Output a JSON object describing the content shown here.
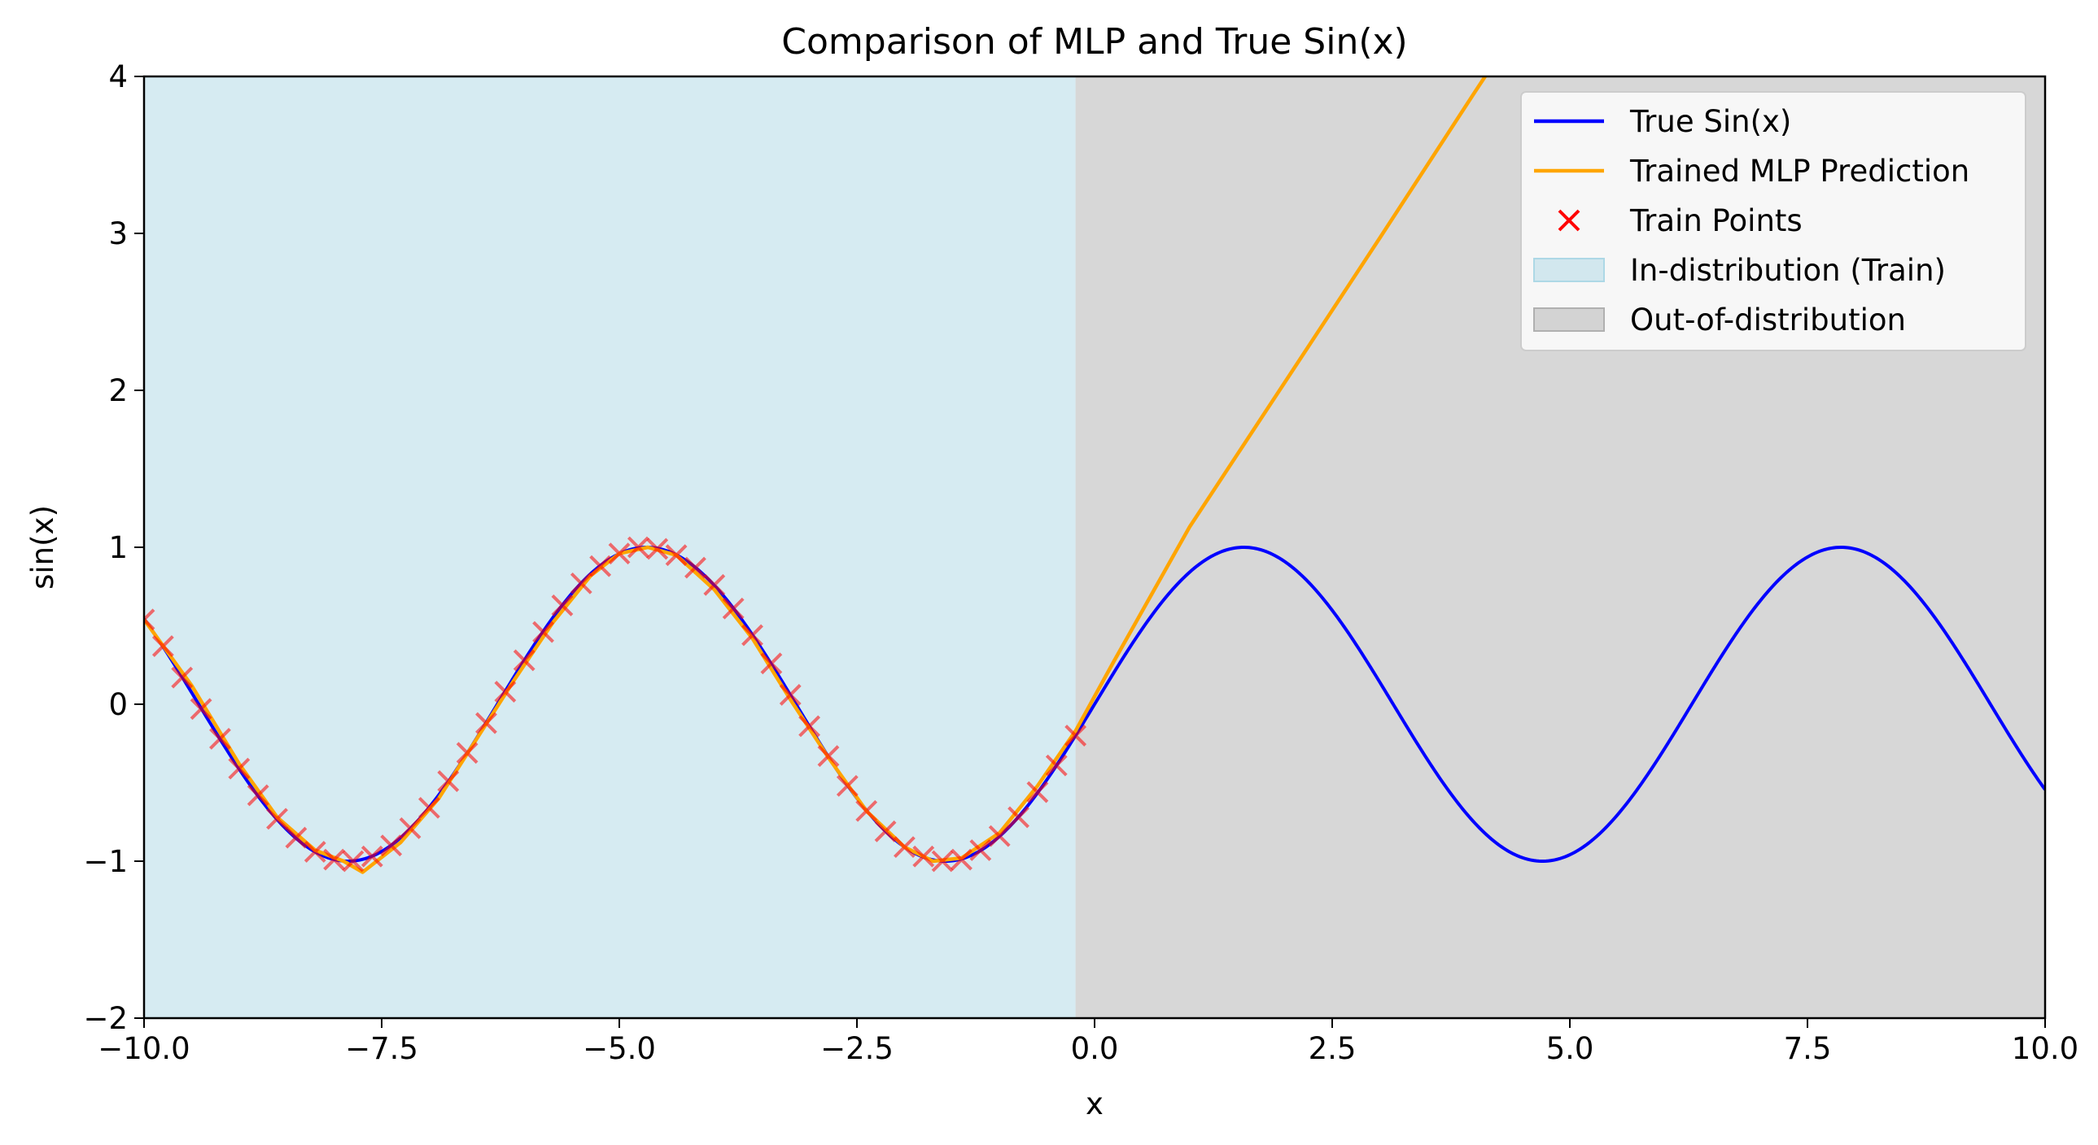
{
  "chart_data": {
    "type": "line",
    "title": "Comparison of MLP and True Sin(x)",
    "xlabel": "x",
    "ylabel": "sin(x)",
    "xlim": [
      -10.0,
      10.0
    ],
    "ylim": [
      -2,
      4
    ],
    "xticks": [
      "−10.0",
      "−7.5",
      "−5.0",
      "−2.5",
      "0.0",
      "2.5",
      "5.0",
      "7.5",
      "10.0"
    ],
    "xtick_values": [
      -10.0,
      -7.5,
      -5.0,
      -2.5,
      0.0,
      2.5,
      5.0,
      7.5,
      10.0
    ],
    "yticks": [
      "−2",
      "−1",
      "0",
      "1",
      "2",
      "3",
      "4"
    ],
    "ytick_values": [
      -2,
      -1,
      0,
      1,
      2,
      3,
      4
    ],
    "grid": false,
    "legend_position": "top-right",
    "regions": [
      {
        "name": "In-distribution (Train)",
        "x_start": -10.0,
        "x_end": -0.2,
        "color": "#add8e6"
      },
      {
        "name": "Out-of-distribution",
        "x_start": -0.2,
        "x_end": 10.0,
        "color": "#b0b0b0"
      }
    ],
    "series": [
      {
        "name": "True Sin(x)",
        "kind": "line",
        "color": "#0000ff",
        "function": "sin",
        "x_range": [
          -10.0,
          10.0
        ]
      },
      {
        "name": "Trained MLP Prediction",
        "kind": "line",
        "color": "#ffa500",
        "x": [
          -10.0,
          -9.5,
          -9.0,
          -8.6,
          -8.2,
          -7.9,
          -7.7,
          -7.3,
          -6.9,
          -6.5,
          -6.1,
          -5.7,
          -5.3,
          -5.0,
          -4.7,
          -4.4,
          -4.0,
          -3.6,
          -3.2,
          -2.8,
          -2.4,
          -2.0,
          -1.7,
          -1.4,
          -1.0,
          -0.6,
          -0.2,
          0.2,
          0.6,
          1.0,
          2.0,
          3.0,
          4.0,
          4.6
        ],
        "y": [
          0.54,
          0.12,
          -0.38,
          -0.72,
          -0.93,
          -1.0,
          -1.07,
          -0.88,
          -0.6,
          -0.22,
          0.16,
          0.52,
          0.82,
          0.96,
          1.0,
          0.95,
          0.73,
          0.42,
          0.03,
          -0.34,
          -0.68,
          -0.91,
          -1.0,
          -0.98,
          -0.82,
          -0.52,
          -0.17,
          0.27,
          0.7,
          1.13,
          2.05,
          2.97,
          3.9,
          4.45
        ]
      },
      {
        "name": "Train Points",
        "kind": "scatter",
        "marker": "x",
        "color": "#ff0000",
        "x": [
          -10.0,
          -9.8,
          -9.6,
          -9.4,
          -9.2,
          -9.0,
          -8.8,
          -8.6,
          -8.4,
          -8.2,
          -8.0,
          -7.8,
          -7.6,
          -7.4,
          -7.2,
          -7.0,
          -6.8,
          -6.6,
          -6.4,
          -6.2,
          -6.0,
          -5.8,
          -5.6,
          -5.4,
          -5.2,
          -5.0,
          -4.8,
          -4.6,
          -4.4,
          -4.2,
          -4.0,
          -3.8,
          -3.6,
          -3.4,
          -3.2,
          -3.0,
          -2.8,
          -2.6,
          -2.4,
          -2.2,
          -2.0,
          -1.8,
          -1.6,
          -1.4,
          -1.2,
          -1.0,
          -0.8,
          -0.6,
          -0.4,
          -0.2
        ],
        "y": [
          0.54,
          0.37,
          0.17,
          -0.03,
          -0.22,
          -0.41,
          -0.58,
          -0.73,
          -0.85,
          -0.94,
          -0.99,
          -1.0,
          -0.97,
          -0.9,
          -0.79,
          -0.66,
          -0.49,
          -0.31,
          -0.12,
          0.08,
          0.28,
          0.46,
          0.63,
          0.77,
          0.88,
          0.96,
          1.0,
          0.99,
          0.95,
          0.87,
          0.76,
          0.61,
          0.44,
          0.26,
          0.06,
          -0.14,
          -0.33,
          -0.52,
          -0.68,
          -0.81,
          -0.91,
          -0.97,
          -1.0,
          -0.99,
          -0.93,
          -0.84,
          -0.72,
          -0.56,
          -0.39,
          -0.2
        ]
      }
    ],
    "legend": [
      {
        "label": "True Sin(x)",
        "kind": "line",
        "color": "#0000ff"
      },
      {
        "label": "Trained MLP Prediction",
        "kind": "line",
        "color": "#ffa500"
      },
      {
        "label": "Train Points",
        "kind": "marker",
        "color": "#ff0000"
      },
      {
        "label": "In-distribution (Train)",
        "kind": "patch",
        "color": "#add8e6"
      },
      {
        "label": "Out-of-distribution",
        "kind": "patch",
        "color": "#b0b0b0"
      }
    ]
  }
}
